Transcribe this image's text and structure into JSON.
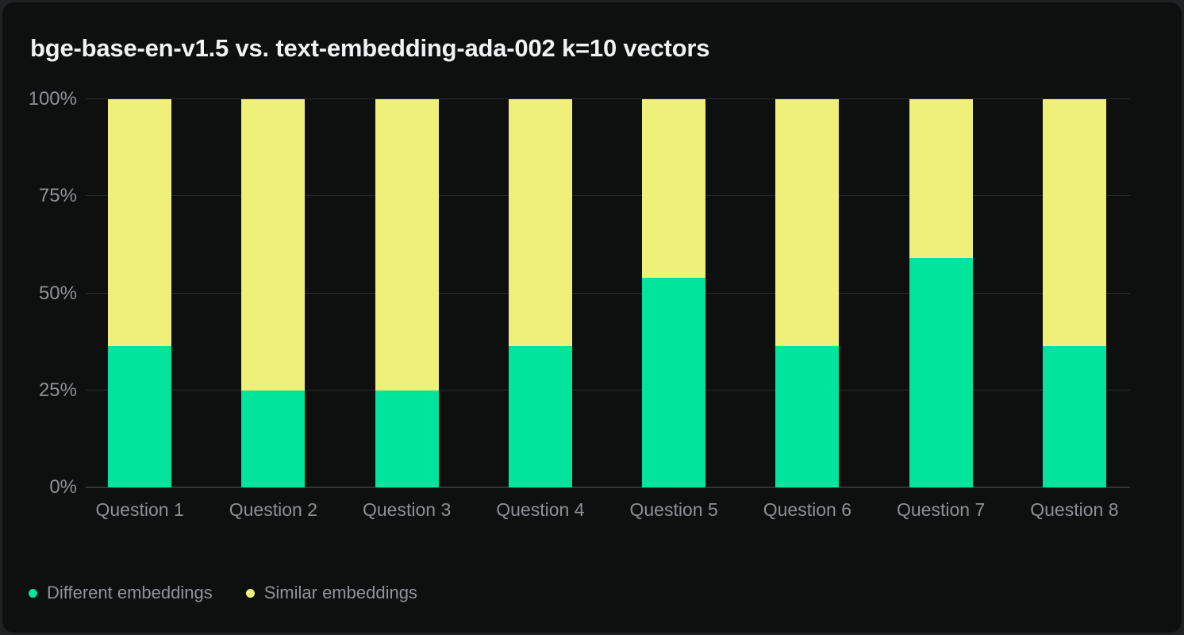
{
  "title": "bge-base-en-v1.5 vs. text-embedding-ada-002 k=10 vectors",
  "colors": {
    "page_background": "#1F2223",
    "card_background": "#0E100F",
    "title_text": "#F1F2F3",
    "tick_text": "#8D9296",
    "legend_text": "#8F9499",
    "gridline": "#2A2D2D",
    "axis_line": "#323536",
    "series_green": "#00E49B",
    "series_yellow": "#EEF07A"
  },
  "chart_data": {
    "type": "bar",
    "stacked": true,
    "title": "bge-base-en-v1.5 vs. text-embedding-ada-002 k=10 vectors",
    "xlabel": "",
    "ylabel": "",
    "ylim": [
      0,
      100
    ],
    "grid": "horizontal",
    "legend_position": "bottom-left",
    "categories": [
      "Question 1",
      "Question 2",
      "Question 3",
      "Question 4",
      "Question 5",
      "Question 6",
      "Question 7",
      "Question 8"
    ],
    "series": [
      {
        "name": "Different embeddings",
        "color": "#00E49B",
        "stack_order": "bottom",
        "values": [
          36.4,
          25,
          25,
          36.4,
          53.9,
          36.4,
          59,
          36.4
        ]
      },
      {
        "name": "Similar embeddings",
        "color": "#EEF07A",
        "stack_order": "top",
        "values": [
          63.6,
          75,
          75,
          63.6,
          46.1,
          63.6,
          41,
          63.6
        ]
      }
    ],
    "yticks": [
      {
        "value": 0,
        "label": "0%"
      },
      {
        "value": 25,
        "label": "25%"
      },
      {
        "value": 50,
        "label": "50%"
      },
      {
        "value": 75,
        "label": "75%"
      },
      {
        "value": 100,
        "label": "100%"
      }
    ],
    "legend": [
      {
        "label": "Different embeddings",
        "color": "#00E49B"
      },
      {
        "label": "Similar embeddings",
        "color": "#EEF07A"
      }
    ]
  }
}
